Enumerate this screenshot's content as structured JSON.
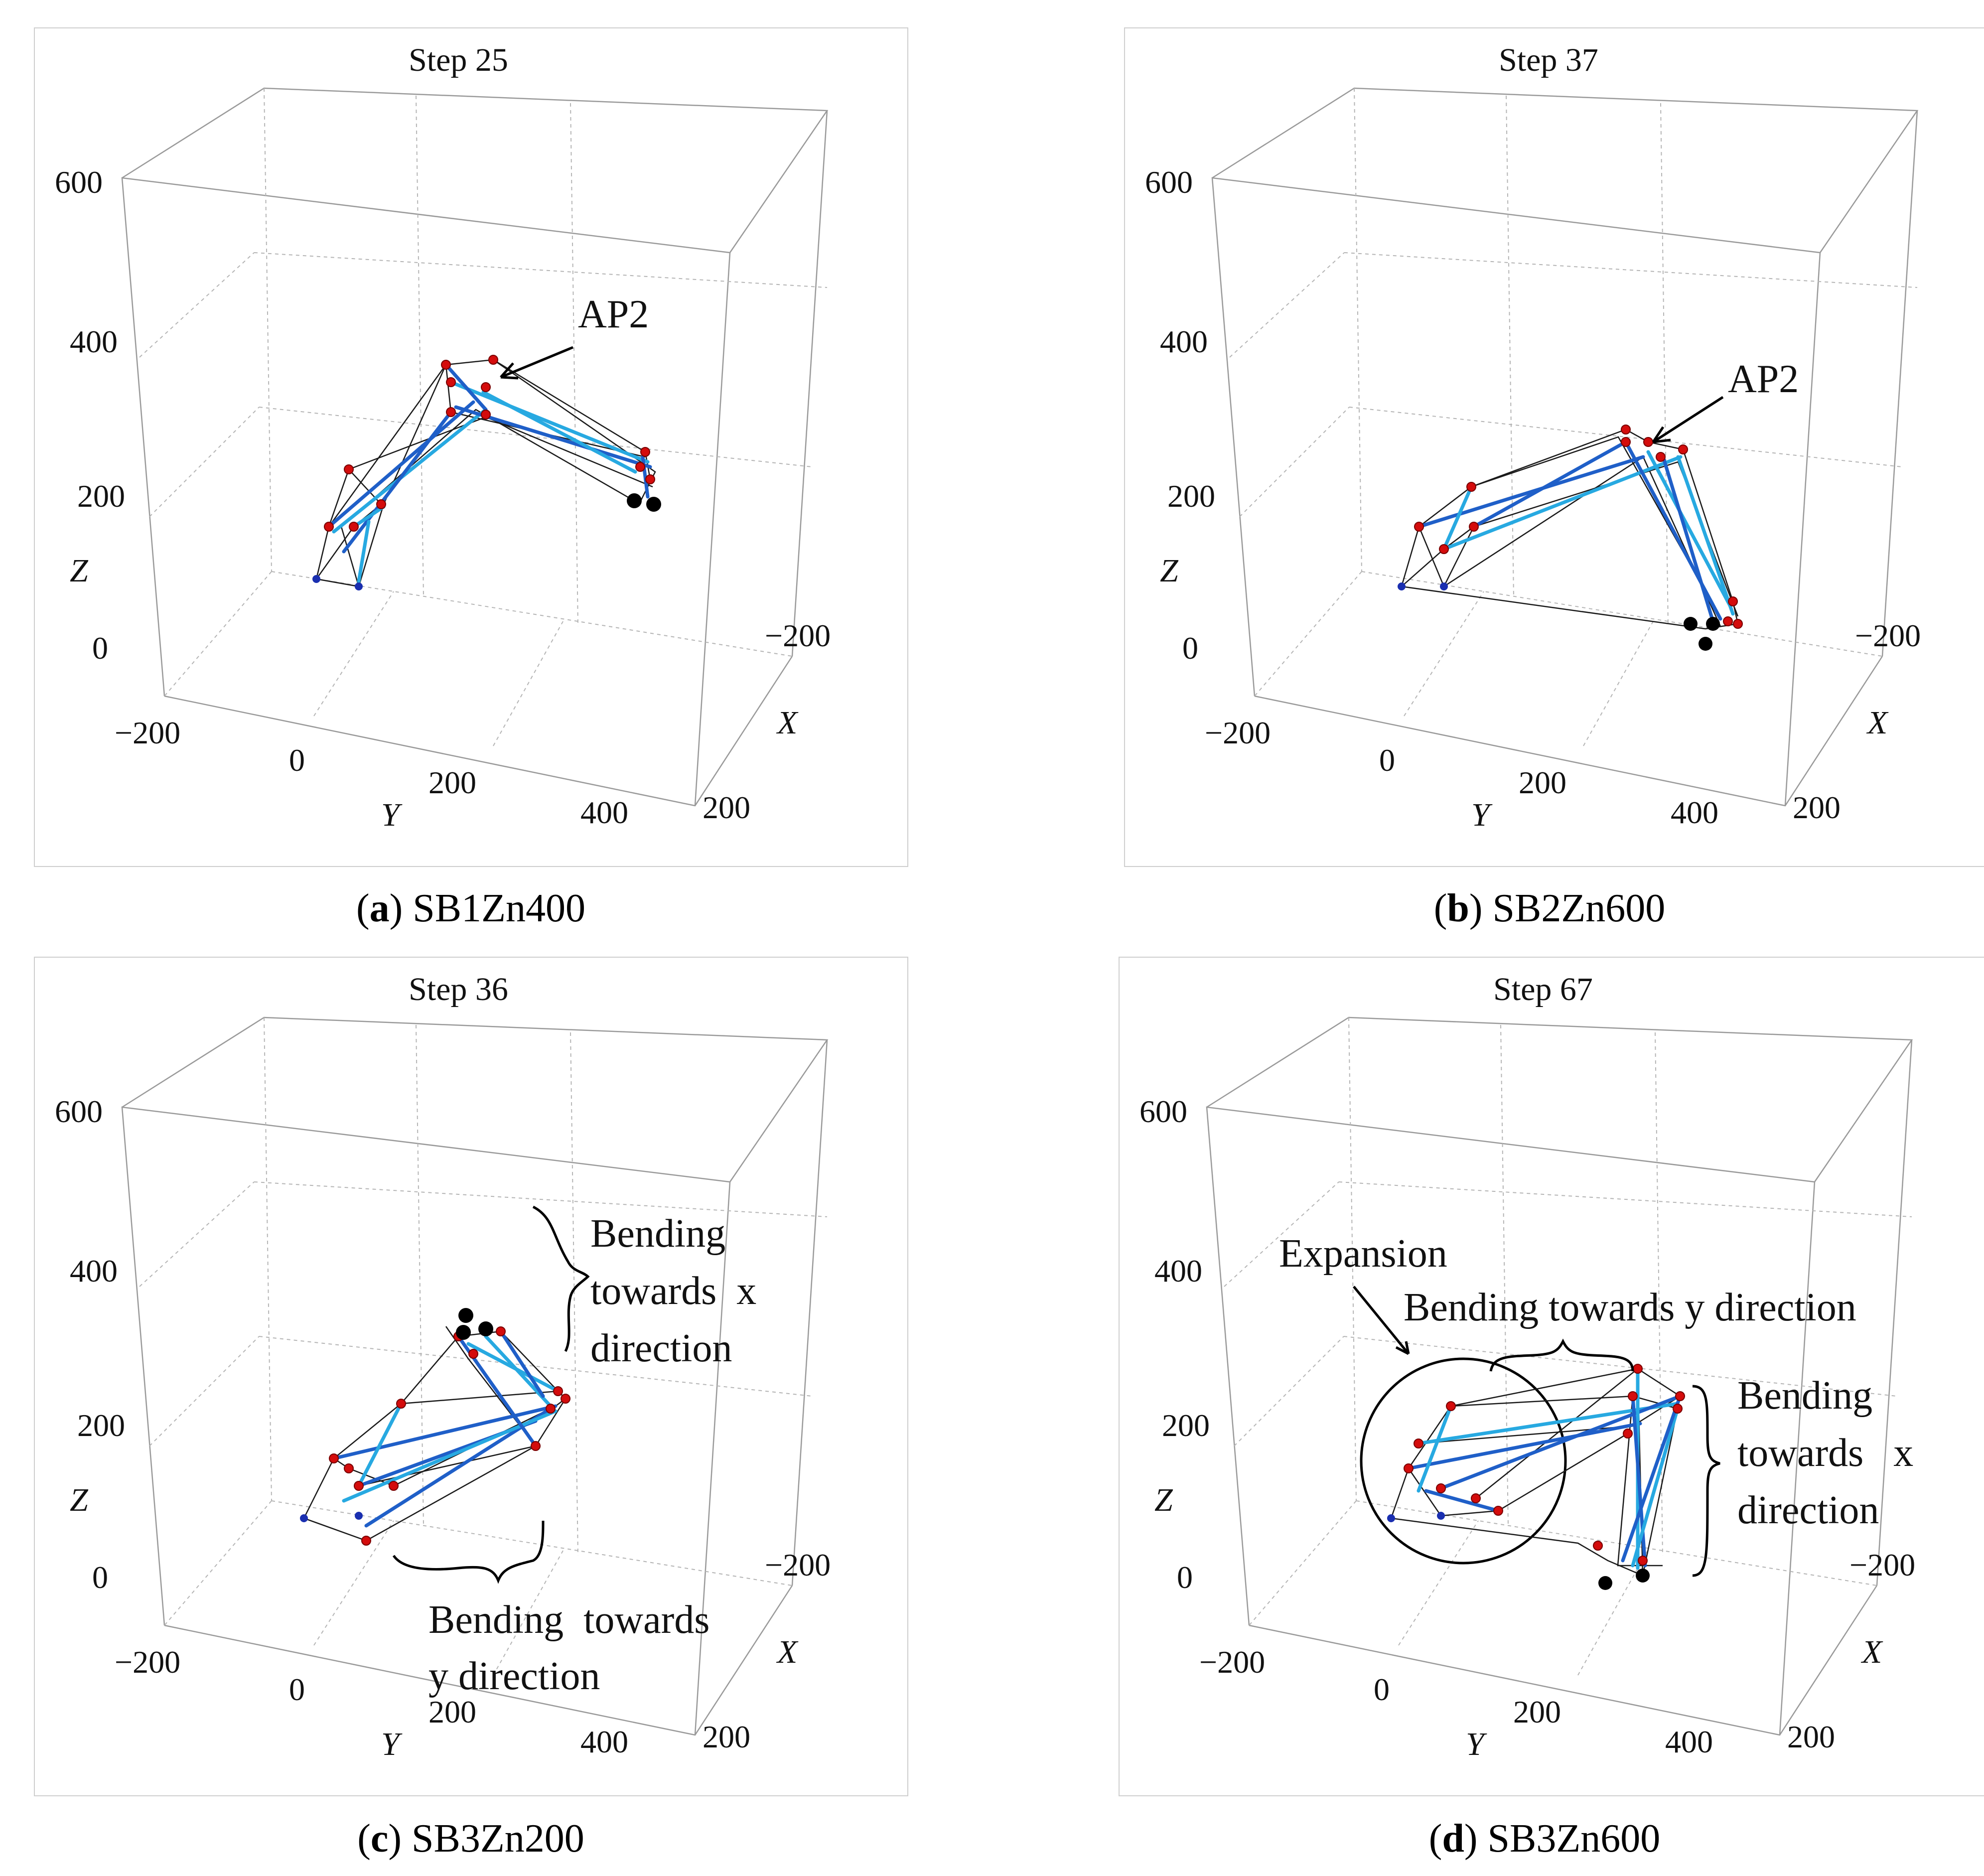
{
  "panels": [
    {
      "id": "a",
      "title": "Step 25",
      "caption_letter": "a",
      "caption_name": "SB1Zn400",
      "annotations": [
        "AP2"
      ]
    },
    {
      "id": "b",
      "title": "Step 37",
      "caption_letter": "b",
      "caption_name": "SB2Zn600",
      "annotations": [
        "AP2"
      ]
    },
    {
      "id": "c",
      "title": "Step 36",
      "caption_letter": "c",
      "caption_name": "SB3Zn200",
      "annotations": [
        "Bending",
        "towards  x",
        "direction",
        "Bending  towards",
        "y direction"
      ]
    },
    {
      "id": "d",
      "title": "Step 67",
      "caption_letter": "d",
      "caption_name": "SB3Zn600",
      "annotations": [
        "Expansion",
        "Bending towards y direction",
        "Bending",
        "towards   x",
        "direction"
      ]
    }
  ],
  "axes": {
    "z_ticks": [
      "600",
      "400",
      "200",
      "0"
    ],
    "y_ticks": [
      "−200",
      "0",
      "200",
      "400"
    ],
    "x_ticks": [
      "−200",
      "200"
    ],
    "z_label": "Z",
    "y_label": "Y",
    "x_label": "X"
  },
  "colors": {
    "node": "#d40c0c",
    "anchor_node": "#1a2fb0",
    "support_node": "#000000",
    "cable_light": "#27a9e1",
    "cable_dark": "#1f5fc8",
    "wire": "#1a1a1a"
  }
}
